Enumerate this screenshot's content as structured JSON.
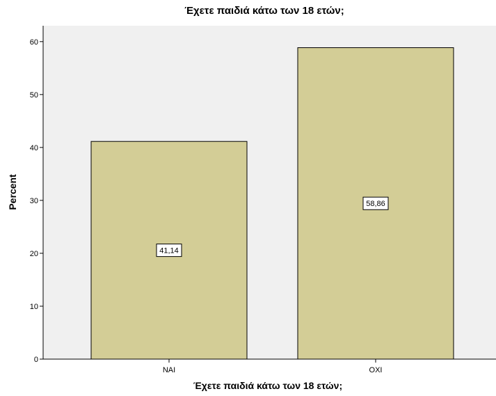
{
  "chart_data": {
    "type": "bar",
    "title": "Έχετε παιδιά κάτω των 18 ετών;",
    "xlabel": "Έχετε παιδιά κάτω των 18 ετών;",
    "ylabel": "Percent",
    "categories": [
      "ΝΑΙ",
      "ΟΧΙ"
    ],
    "values": [
      41.14,
      58.86
    ],
    "data_labels": [
      "41,14",
      "58,86"
    ],
    "ylim": [
      0,
      63
    ],
    "yticks": [
      0,
      10,
      20,
      30,
      40,
      50,
      60
    ],
    "ytick_labels": [
      "0",
      "10",
      "20",
      "30",
      "40",
      "50",
      "60"
    ],
    "grid": false,
    "legend": "none",
    "colors": {
      "bar_fill": "#d3cd96",
      "bar_stroke": "#000000",
      "plot_background": "#f0f0f0"
    }
  }
}
